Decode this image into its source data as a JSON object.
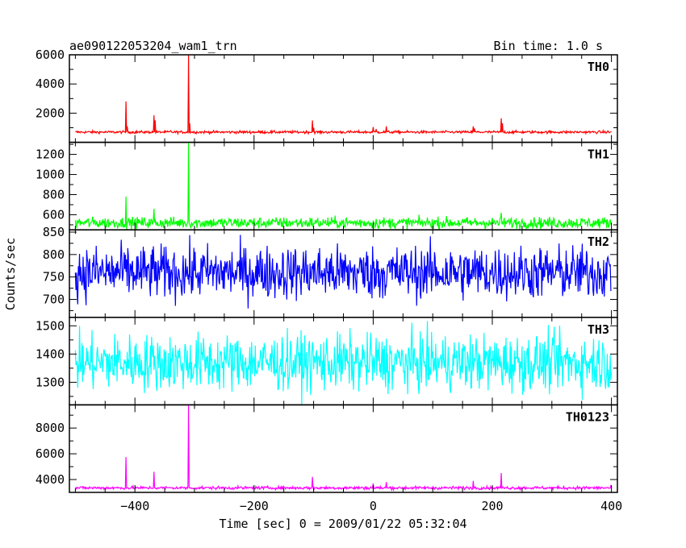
{
  "header": {
    "title": "ae090122053204_wam1_trn",
    "bin_time": "Bin time: 1.0 s"
  },
  "chart_data": {
    "type": "line",
    "xlabel": "Time [sec] 0 = 2009/01/22 05:32:04",
    "ylabel": "Counts/sec",
    "xlim": [
      -510,
      410
    ],
    "x_ticks": [
      -400,
      -200,
      0,
      200,
      400
    ],
    "x_range": [
      -500,
      400
    ],
    "panels": [
      {
        "name": "TH0",
        "color": "#ff0000",
        "ylim": [
          0,
          6000
        ],
        "y_ticks": [
          2000,
          4000,
          6000
        ],
        "baseline": 700,
        "noise": 45,
        "spikes": [
          [
            -415,
            2800
          ],
          [
            -413,
            1100
          ],
          [
            -368,
            1850
          ],
          [
            -366,
            1500
          ],
          [
            -340,
            800
          ],
          [
            -310,
            6000
          ],
          [
            -308,
            1300
          ],
          [
            -102,
            1500
          ],
          [
            -100,
            1000
          ],
          [
            0,
            1050
          ],
          [
            5,
            900
          ],
          [
            22,
            1100
          ],
          [
            168,
            1100
          ],
          [
            170,
            950
          ],
          [
            215,
            1650
          ],
          [
            217,
            1300
          ]
        ]
      },
      {
        "name": "TH1",
        "color": "#00ff00",
        "ylim": [
          450,
          1320
        ],
        "y_ticks": [
          600,
          800,
          1000,
          1200
        ],
        "baseline": 520,
        "noise": 28,
        "spikes": [
          [
            -415,
            780
          ],
          [
            -368,
            660
          ],
          [
            -310,
            1320
          ],
          [
            215,
            620
          ]
        ]
      },
      {
        "name": "TH2",
        "color": "#0000ff",
        "ylim": [
          660,
          855
        ],
        "y_ticks": [
          700,
          750,
          800,
          850
        ],
        "baseline": 760,
        "noise": 30,
        "spikes": []
      },
      {
        "name": "TH3",
        "color": "#00ffff",
        "ylim": [
          1220,
          1530
        ],
        "y_ticks": [
          1300,
          1400,
          1500
        ],
        "baseline": 1370,
        "noise": 50,
        "spikes": []
      },
      {
        "name": "TH0123",
        "color": "#ff00ff",
        "ylim": [
          3000,
          9800
        ],
        "y_ticks": [
          4000,
          6000,
          8000
        ],
        "baseline": 3350,
        "noise": 60,
        "spikes": [
          [
            -415,
            5750
          ],
          [
            -368,
            4600
          ],
          [
            -310,
            9800
          ],
          [
            -102,
            4200
          ],
          [
            0,
            3700
          ],
          [
            22,
            3800
          ],
          [
            168,
            3900
          ],
          [
            215,
            4500
          ]
        ]
      }
    ]
  }
}
